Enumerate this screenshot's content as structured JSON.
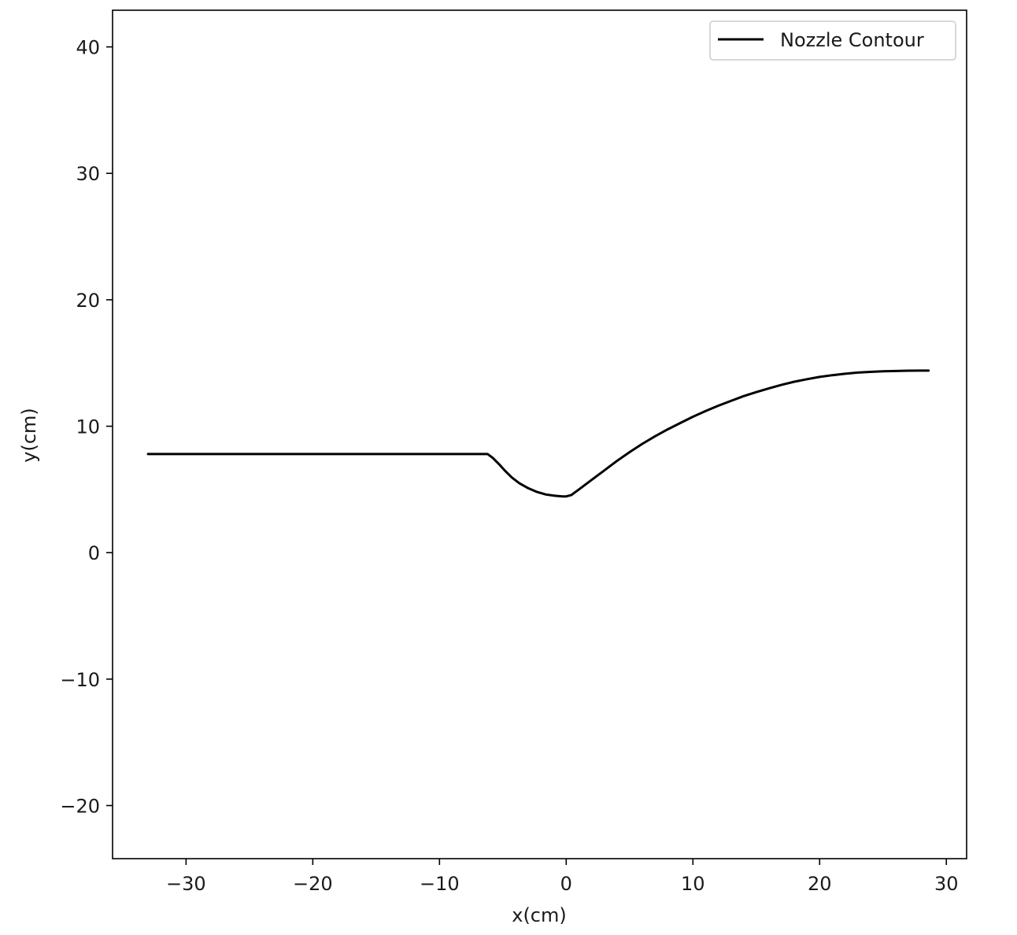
{
  "chart_data": {
    "type": "line",
    "title": "",
    "xlabel": "x(cm)",
    "ylabel": "y(cm)",
    "xlim": [
      -35.8,
      31.6
    ],
    "ylim": [
      -24.2,
      42.9
    ],
    "xticks": [
      -30,
      -20,
      -10,
      0,
      10,
      20,
      30
    ],
    "yticks": [
      -20,
      -10,
      0,
      10,
      20,
      30,
      40
    ],
    "xtick_labels": [
      "−30",
      "−20",
      "−10",
      "0",
      "10",
      "20",
      "30"
    ],
    "ytick_labels": [
      "−20",
      "−10",
      "0",
      "10",
      "20",
      "30",
      "40"
    ],
    "grid": false,
    "legend_position": "top-right",
    "series": [
      {
        "name": "Nozzle Contour",
        "color": "#000000",
        "x": [
          -33.0,
          -20.0,
          -10.0,
          -6.2,
          -5.8,
          -5.3,
          -4.8,
          -4.3,
          -3.7,
          -3.0,
          -2.3,
          -1.6,
          -0.9,
          -0.3,
          0.0,
          0.4,
          1.0,
          2.0,
          3.0,
          4.0,
          5.0,
          6.0,
          7.0,
          8.0,
          9.0,
          10.0,
          11.0,
          12.0,
          13.0,
          14.0,
          15.0,
          16.0,
          17.0,
          18.0,
          19.0,
          20.0,
          21.0,
          22.0,
          23.0,
          24.0,
          25.0,
          26.0,
          27.0,
          28.0,
          28.6
        ],
        "y": [
          7.8,
          7.8,
          7.8,
          7.8,
          7.5,
          7.0,
          6.45,
          5.95,
          5.5,
          5.1,
          4.8,
          4.6,
          4.5,
          4.45,
          4.45,
          4.55,
          5.0,
          5.75,
          6.5,
          7.25,
          7.95,
          8.6,
          9.2,
          9.75,
          10.25,
          10.75,
          11.2,
          11.62,
          12.0,
          12.38,
          12.7,
          13.0,
          13.28,
          13.52,
          13.72,
          13.9,
          14.04,
          14.15,
          14.24,
          14.3,
          14.34,
          14.37,
          14.39,
          14.4,
          14.4
        ]
      }
    ]
  }
}
